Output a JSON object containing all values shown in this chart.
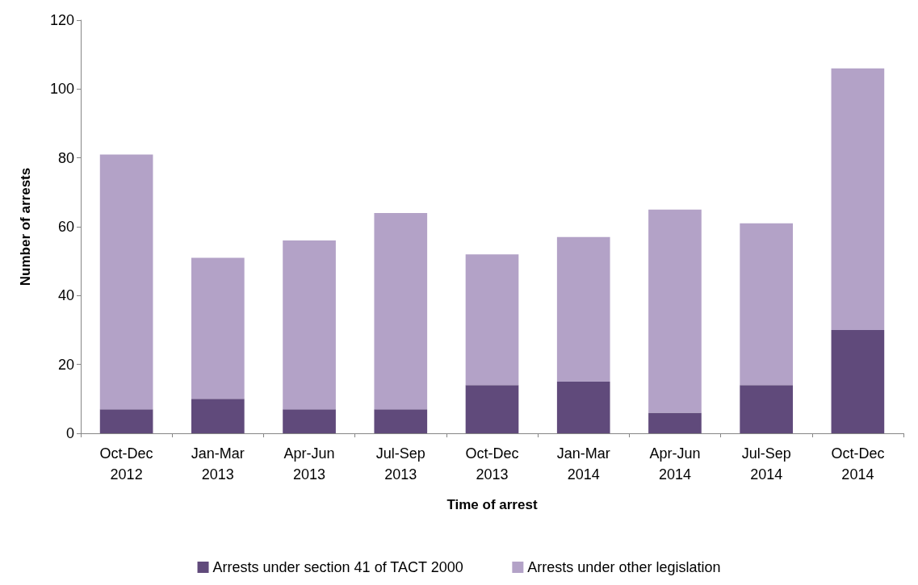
{
  "chart_data": {
    "type": "bar",
    "stacked": true,
    "xlabel": "Time of arrest",
    "ylabel": "Number of arrests",
    "categories": [
      "Oct-Dec\n2012",
      "Jan-Mar\n2013",
      "Apr-Jun\n2013",
      "Jul-Sep\n2013",
      "Oct-Dec\n2013",
      "Jan-Mar\n2014",
      "Apr-Jun\n2014",
      "Jul-Sep\n2014",
      "Oct-Dec\n2014"
    ],
    "series": [
      {
        "name": "Arrests under section 41 of TACT 2000",
        "color": "#604a7b",
        "values": [
          7,
          10,
          7,
          7,
          14,
          15,
          6,
          14,
          30
        ]
      },
      {
        "name": "Arrests under other legislation",
        "color": "#b3a2c7",
        "values": [
          74,
          41,
          49,
          57,
          38,
          42,
          59,
          47,
          76
        ]
      }
    ],
    "ylim": [
      0,
      120
    ],
    "yticks": [
      0,
      20,
      40,
      60,
      80,
      100,
      120
    ],
    "grid": false,
    "legend": "bottom"
  }
}
